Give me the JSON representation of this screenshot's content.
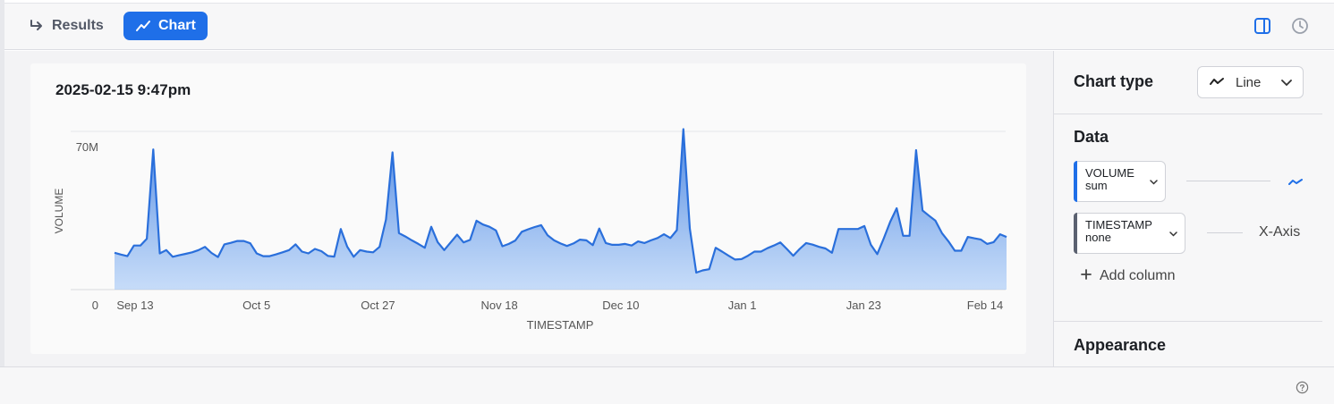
{
  "toolbar": {
    "tabs": [
      {
        "label": "Results",
        "icon": "arrow-return-icon",
        "active": false
      },
      {
        "label": "Chart",
        "icon": "trend-line-icon",
        "active": true
      }
    ],
    "right_icons": [
      "panel-toggle-icon",
      "history-clock-icon"
    ],
    "accent": "#1f6fe8"
  },
  "chart": {
    "heading": "2025-02-15 9:47pm"
  },
  "chart_data": {
    "type": "area",
    "title": "2025-02-15 9:47pm",
    "xlabel": "TIMESTAMP",
    "ylabel": "VOLUME",
    "ylim": [
      0,
      70000000
    ],
    "y_tick_labels": [
      "0",
      "70M"
    ],
    "x_tick_labels": [
      "Sep 13",
      "Oct 5",
      "Oct 27",
      "Nov 18",
      "Dec 10",
      "Jan 1",
      "Jan 23",
      "Feb 14"
    ],
    "grid": "horizontal",
    "color": "#2a6fdb",
    "series": [
      {
        "values": [
          16300000,
          15500000,
          14800000,
          19500000,
          19500000,
          22500000,
          62000000,
          16000000,
          17500000,
          14500000,
          15200000,
          15800000,
          16500000,
          17500000,
          18900000,
          16200000,
          14400000,
          20000000,
          20700000,
          21500000,
          21500000,
          20500000,
          16000000,
          14800000,
          14800000,
          15600000,
          16500000,
          17500000,
          20000000,
          16800000,
          16000000,
          18000000,
          17000000,
          14900000,
          14600000,
          26800000,
          19000000,
          14500000,
          17500000,
          16800000,
          16500000,
          18900000,
          31000000,
          60700000,
          25000000,
          23500000,
          21800000,
          20200000,
          18500000,
          27800000,
          21000000,
          17500000,
          20900000,
          24300000,
          20900000,
          22000000,
          30500000,
          28800000,
          27800000,
          26200000,
          19200000,
          20200000,
          21700000,
          25600000,
          26700000,
          27700000,
          28500000,
          24000000,
          21800000,
          20400000,
          19300000,
          20400000,
          22100000,
          21800000,
          19700000,
          27000000,
          20600000,
          19800000,
          19800000,
          20200000,
          19500000,
          21300000,
          20600000,
          21800000,
          22800000,
          24500000,
          22800000,
          26300000,
          71000000,
          27000000,
          7500000,
          8500000,
          9000000,
          18500000,
          16800000,
          15000000,
          13300000,
          13500000,
          15000000,
          16800000,
          16800000,
          18300000,
          19500000,
          20900000,
          18000000,
          15000000,
          18000000,
          20600000,
          19900000,
          18900000,
          18200000,
          16300000,
          26800000,
          26800000,
          26800000,
          26800000,
          28100000,
          19900000,
          15700000,
          22600000,
          30000000,
          36000000,
          23800000,
          23800000,
          61700000,
          35000000,
          32700000,
          30500000,
          25000000,
          21400000,
          17200000,
          17200000,
          23300000,
          22700000,
          22200000,
          20200000,
          21000000,
          24500000,
          23300000
        ]
      }
    ]
  },
  "side_panel": {
    "chart_type_label": "Chart type",
    "chart_type_value": "Line",
    "data_label": "Data",
    "columns": [
      {
        "name": "VOLUME",
        "agg": "sum",
        "role": "",
        "accent": "#1f6fe8",
        "role_icon": "line-series-icon"
      },
      {
        "name": "TIMESTAMP",
        "agg": "none",
        "role": "X-Axis",
        "accent": "#5b6170"
      }
    ],
    "add_column_label": "Add column",
    "appearance_label": "Appearance"
  },
  "footer": {
    "help_icon": "help-circle-icon"
  }
}
